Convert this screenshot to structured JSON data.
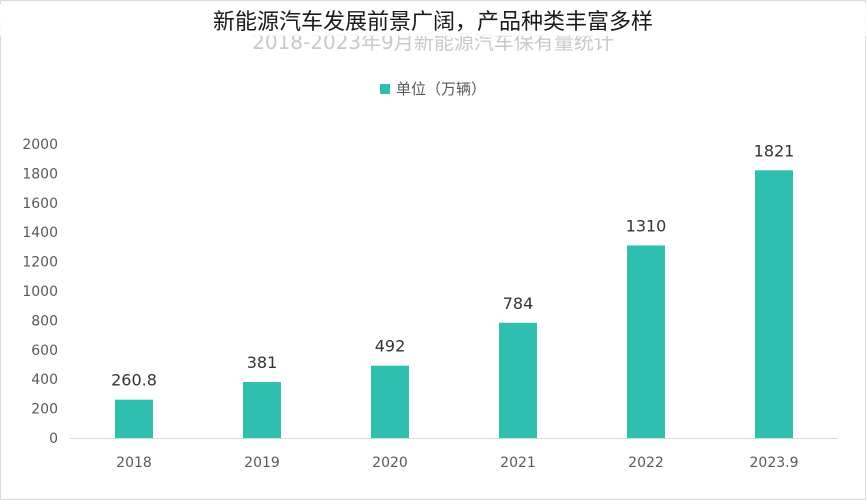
{
  "overlay_title": "新能源汽车发展前景广阔，产品种类丰富多样",
  "chart_data": {
    "type": "bar",
    "title": "2018-2023年9月新能源汽车保有量统计",
    "categories": [
      "2018",
      "2019",
      "2020",
      "2021",
      "2022",
      "2023.9"
    ],
    "series": [
      {
        "name": "单位（万辆）",
        "values": [
          260.8,
          381,
          492,
          784,
          1310,
          1821
        ]
      }
    ],
    "value_labels": [
      "260.8",
      "381",
      "492",
      "784",
      "1310",
      "1821"
    ],
    "y_ticks": [
      "0",
      "200",
      "400",
      "600",
      "800",
      "1000",
      "1200",
      "1400",
      "1600",
      "1800",
      "2000"
    ],
    "ylim": [
      0,
      2000
    ],
    "xlabel": "",
    "ylabel": "",
    "grid": false,
    "legend_position": "top",
    "bar_color": "#2ebfb0"
  }
}
